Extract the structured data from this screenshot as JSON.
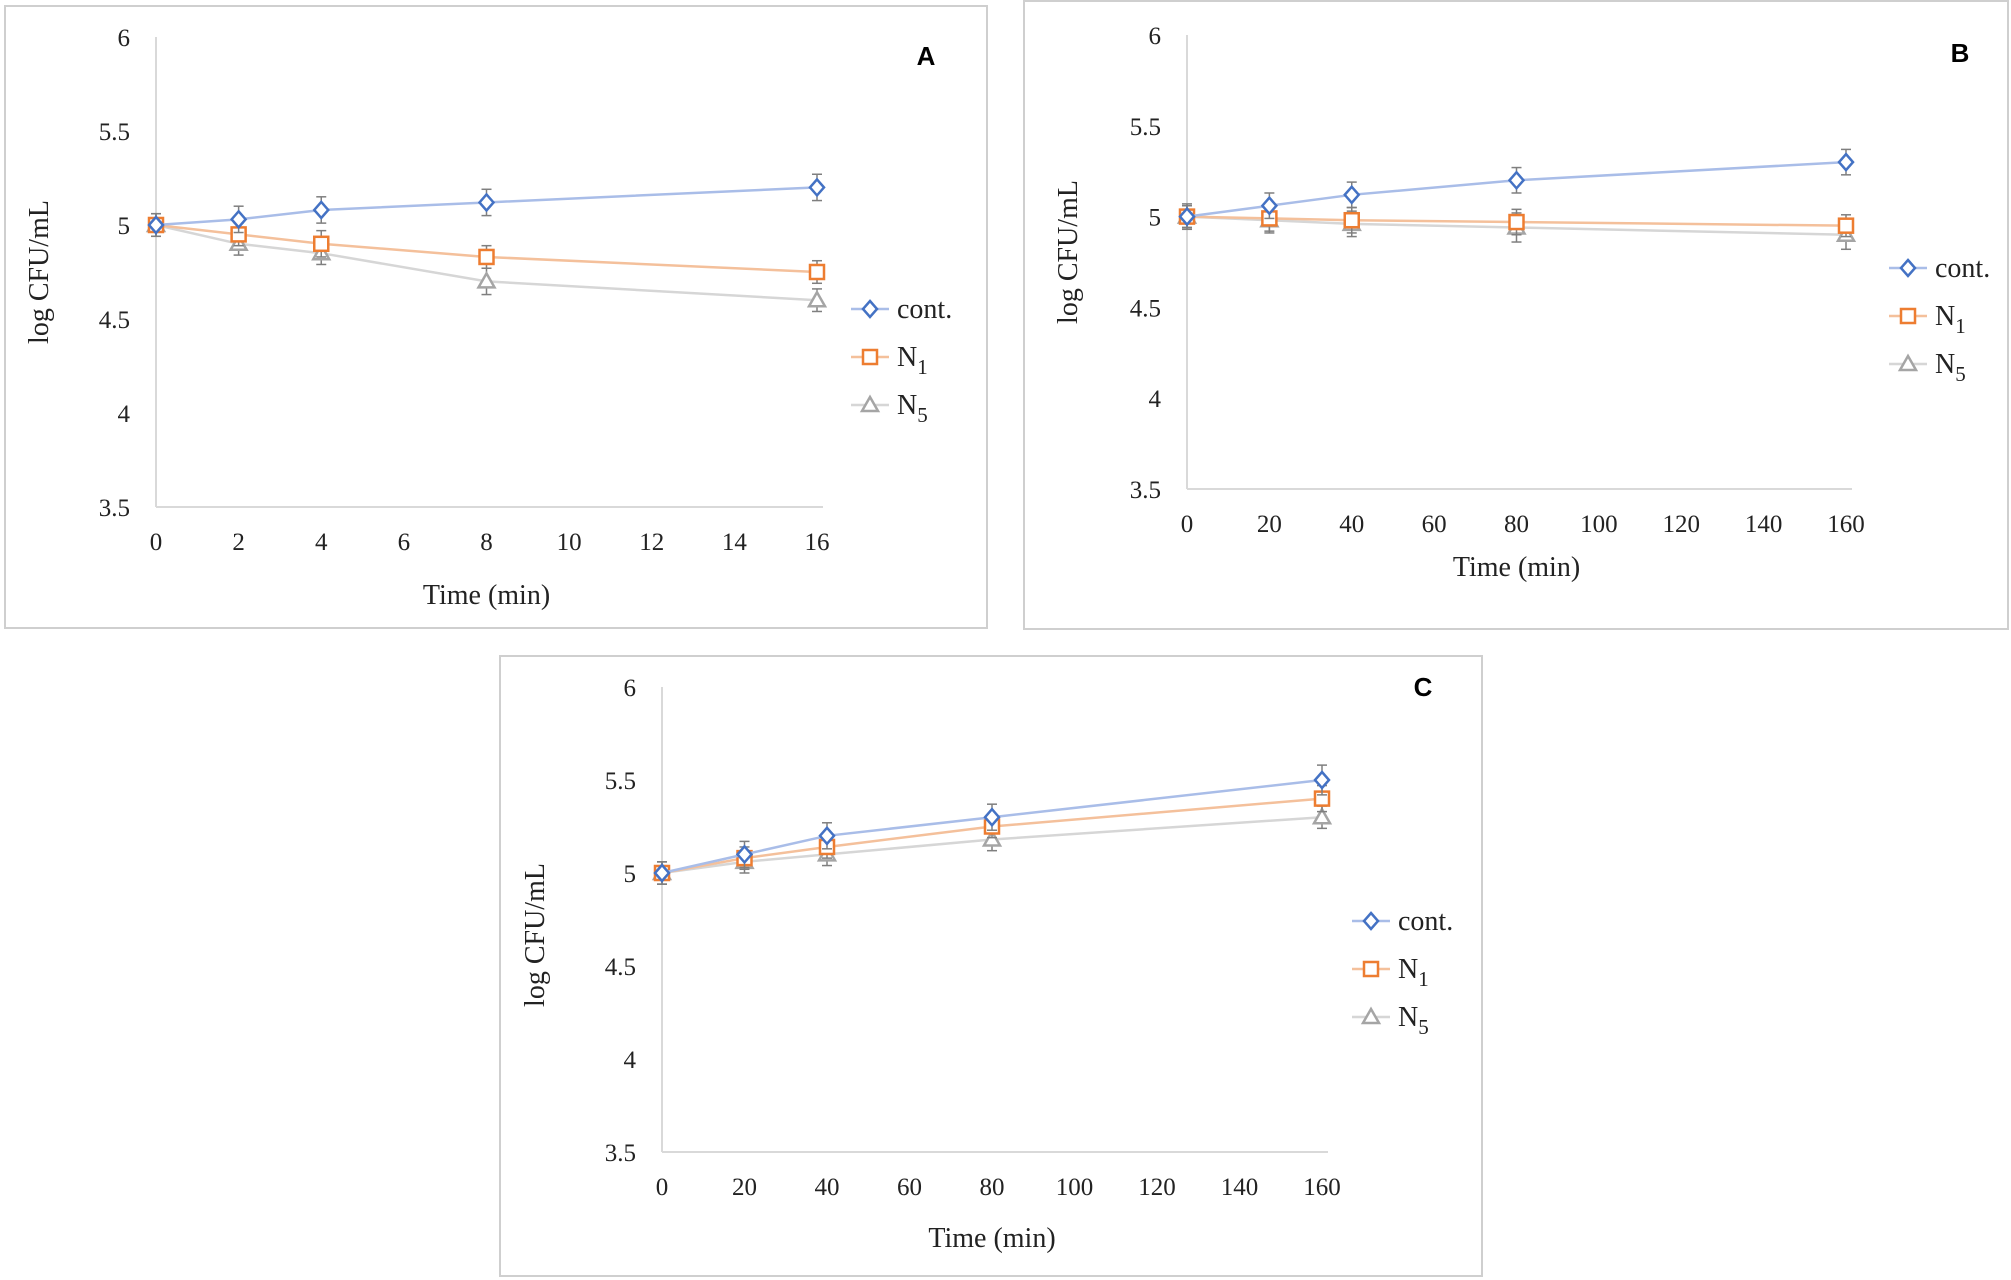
{
  "chart_data": [
    {
      "type": "line",
      "panel_label": "A",
      "xlabel": "Time (min)",
      "ylabel": "log CFU/mL",
      "ylim": [
        3.5,
        6
      ],
      "yticks": [
        "3.5",
        "4",
        "4.5",
        "5",
        "5.5",
        "6"
      ],
      "xlim": [
        0,
        16
      ],
      "xticks": [
        "0",
        "2",
        "4",
        "6",
        "8",
        "10",
        "12",
        "14",
        "16"
      ],
      "x": [
        0,
        2,
        4,
        8,
        16
      ],
      "legend_position": "right",
      "series": [
        {
          "name": "cont.",
          "label_main": "cont.",
          "label_sub": "",
          "marker": "diamond",
          "color": "#4472C4",
          "line_color": "#A9BDE8",
          "values": [
            5.0,
            5.03,
            5.08,
            5.12,
            5.2
          ],
          "errors": [
            0.06,
            0.07,
            0.07,
            0.07,
            0.07
          ]
        },
        {
          "name": "N1",
          "label_main": "N",
          "label_sub": "1",
          "marker": "square",
          "color": "#ED7D31",
          "line_color": "#F4C09B",
          "values": [
            5.0,
            4.95,
            4.9,
            4.83,
            4.75
          ],
          "errors": [
            0.06,
            0.06,
            0.07,
            0.06,
            0.06
          ]
        },
        {
          "name": "N5",
          "label_main": "N",
          "label_sub": "5",
          "marker": "triangle",
          "color": "#A5A5A5",
          "line_color": "#D6D6D6",
          "values": [
            5.0,
            4.9,
            4.85,
            4.7,
            4.6
          ],
          "errors": [
            0.06,
            0.06,
            0.06,
            0.07,
            0.06
          ]
        }
      ]
    },
    {
      "type": "line",
      "panel_label": "B",
      "xlabel": "Time (min)",
      "ylabel": "log CFU/mL",
      "ylim": [
        3.5,
        6
      ],
      "yticks": [
        "3.5",
        "4",
        "4.5",
        "5",
        "5.5",
        "6"
      ],
      "xlim": [
        0,
        160
      ],
      "xticks": [
        "0",
        "20",
        "40",
        "60",
        "80",
        "100",
        "120",
        "140",
        "160"
      ],
      "x": [
        0,
        20,
        40,
        80,
        160
      ],
      "legend_position": "right",
      "series": [
        {
          "name": "cont.",
          "label_main": "cont.",
          "label_sub": "",
          "marker": "diamond",
          "color": "#4472C4",
          "line_color": "#A9BDE8",
          "values": [
            5.0,
            5.06,
            5.12,
            5.2,
            5.3
          ],
          "errors": [
            0.06,
            0.07,
            0.07,
            0.07,
            0.07
          ]
        },
        {
          "name": "N1",
          "label_main": "N",
          "label_sub": "1",
          "marker": "square",
          "color": "#ED7D31",
          "line_color": "#F4C09B",
          "values": [
            5.0,
            4.99,
            4.98,
            4.97,
            4.95
          ],
          "errors": [
            0.06,
            0.07,
            0.07,
            0.07,
            0.06
          ]
        },
        {
          "name": "N5",
          "label_main": "N",
          "label_sub": "5",
          "marker": "triangle",
          "color": "#A5A5A5",
          "line_color": "#D6D6D6",
          "values": [
            5.0,
            4.98,
            4.96,
            4.94,
            4.9
          ],
          "errors": [
            0.07,
            0.07,
            0.07,
            0.08,
            0.08
          ]
        }
      ]
    },
    {
      "type": "line",
      "panel_label": "C",
      "xlabel": "Time (min)",
      "ylabel": "log CFU/mL",
      "ylim": [
        3.5,
        6
      ],
      "yticks": [
        "3.5",
        "4",
        "4.5",
        "5",
        "5.5",
        "6"
      ],
      "xlim": [
        0,
        160
      ],
      "xticks": [
        "0",
        "20",
        "40",
        "60",
        "80",
        "100",
        "120",
        "140",
        "160"
      ],
      "x": [
        0,
        20,
        40,
        80,
        160
      ],
      "legend_position": "right",
      "series": [
        {
          "name": "cont.",
          "label_main": "cont.",
          "label_sub": "",
          "marker": "diamond",
          "color": "#4472C4",
          "line_color": "#A9BDE8",
          "values": [
            5.0,
            5.1,
            5.2,
            5.3,
            5.5
          ],
          "errors": [
            0.06,
            0.07,
            0.07,
            0.07,
            0.08
          ]
        },
        {
          "name": "N1",
          "label_main": "N",
          "label_sub": "1",
          "marker": "square",
          "color": "#ED7D31",
          "line_color": "#F4C09B",
          "values": [
            5.0,
            5.08,
            5.14,
            5.25,
            5.4
          ],
          "errors": [
            0.06,
            0.06,
            0.06,
            0.06,
            0.07
          ]
        },
        {
          "name": "N5",
          "label_main": "N",
          "label_sub": "5",
          "marker": "triangle",
          "color": "#A5A5A5",
          "line_color": "#D6D6D6",
          "values": [
            5.0,
            5.06,
            5.1,
            5.18,
            5.3
          ],
          "errors": [
            0.06,
            0.06,
            0.06,
            0.06,
            0.06
          ]
        }
      ]
    }
  ]
}
